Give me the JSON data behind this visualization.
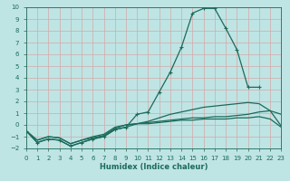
{
  "xlabel": "Humidex (Indice chaleur)",
  "xlim": [
    0,
    23
  ],
  "ylim": [
    -2,
    10
  ],
  "xticks": [
    0,
    1,
    2,
    3,
    4,
    5,
    6,
    7,
    8,
    9,
    10,
    11,
    12,
    13,
    14,
    15,
    16,
    17,
    18,
    19,
    20,
    21,
    22,
    23
  ],
  "yticks": [
    -2,
    -1,
    0,
    1,
    2,
    3,
    4,
    5,
    6,
    7,
    8,
    9,
    10
  ],
  "bg_color": "#bfe4e4",
  "grid_color": "#d4a8a8",
  "line_color": "#1a6b5a",
  "line1_x": [
    0,
    1,
    2,
    3,
    4,
    5,
    6,
    7,
    8,
    9,
    10,
    11,
    12,
    13,
    14,
    15,
    16,
    17,
    18,
    19,
    20,
    21
  ],
  "line1_y": [
    -0.5,
    -1.5,
    -1.2,
    -1.3,
    -1.8,
    -1.5,
    -1.2,
    -1.0,
    -0.4,
    -0.2,
    0.9,
    1.1,
    2.8,
    4.5,
    6.6,
    9.5,
    9.9,
    9.9,
    8.2,
    6.4,
    3.2,
    3.2
  ],
  "line2_x": [
    0,
    1,
    2,
    3,
    4,
    5,
    6,
    7,
    8,
    9,
    10,
    11,
    12,
    13,
    14,
    15,
    16,
    17,
    18,
    19,
    20,
    21,
    22,
    23
  ],
  "line2_y": [
    -0.5,
    -1.5,
    -1.2,
    -1.3,
    -1.8,
    -1.5,
    -1.2,
    -1.0,
    -0.4,
    -0.2,
    0.1,
    0.3,
    0.6,
    0.9,
    1.1,
    1.3,
    1.5,
    1.6,
    1.7,
    1.8,
    1.9,
    1.8,
    1.2,
    -0.1
  ],
  "line3_x": [
    0,
    1,
    2,
    3,
    4,
    5,
    6,
    7,
    8,
    9,
    10,
    11,
    12,
    13,
    14,
    15,
    16,
    17,
    18,
    19,
    20,
    21,
    22,
    23
  ],
  "line3_y": [
    -0.5,
    -1.3,
    -1.0,
    -1.1,
    -1.6,
    -1.3,
    -1.1,
    -0.9,
    -0.3,
    0.0,
    0.1,
    0.2,
    0.3,
    0.4,
    0.5,
    0.6,
    0.6,
    0.7,
    0.7,
    0.8,
    0.9,
    1.1,
    1.2,
    0.9
  ],
  "line4_x": [
    0,
    1,
    2,
    3,
    4,
    5,
    6,
    7,
    8,
    9,
    10,
    11,
    12,
    13,
    14,
    15,
    16,
    17,
    18,
    19,
    20,
    21,
    22,
    23
  ],
  "line4_y": [
    -0.5,
    -1.3,
    -1.0,
    -1.1,
    -1.6,
    -1.3,
    -1.0,
    -0.8,
    -0.2,
    0.0,
    0.1,
    0.1,
    0.2,
    0.3,
    0.4,
    0.4,
    0.5,
    0.5,
    0.5,
    0.6,
    0.6,
    0.7,
    0.5,
    -0.2
  ]
}
